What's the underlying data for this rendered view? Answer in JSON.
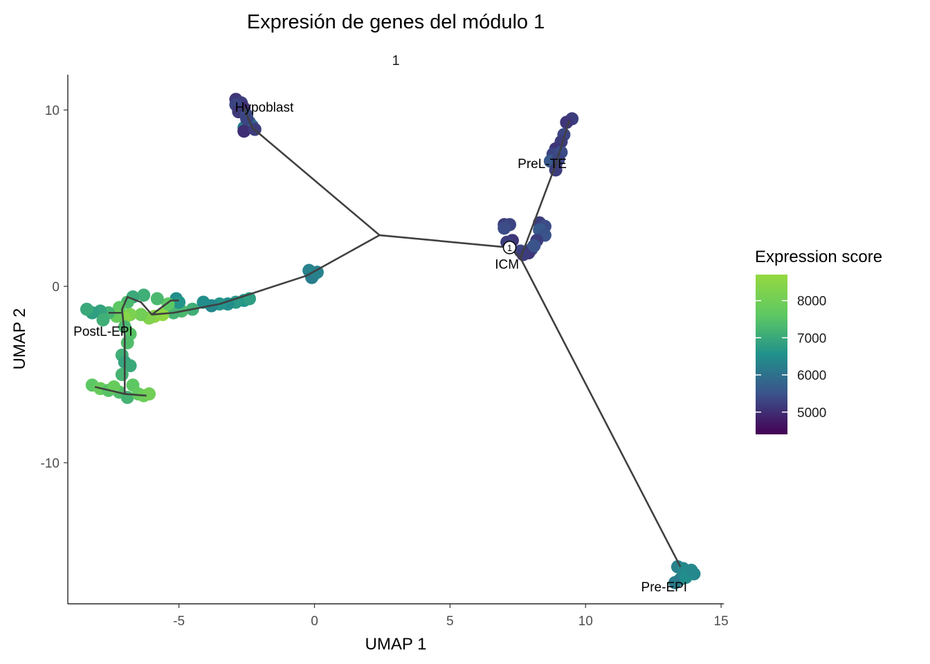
{
  "chart_data": {
    "type": "scatter",
    "title": "Expresión de genes del módulo 1",
    "facet_label": "1",
    "xlabel": "UMAP 1",
    "ylabel": "UMAP 2",
    "xlim": [
      -9.1,
      15.1
    ],
    "ylim": [
      -18.0,
      12.0
    ],
    "xticks": [
      -5,
      0,
      5,
      10,
      15
    ],
    "yticks": [
      -10,
      0,
      10
    ],
    "xtick_labels": [
      "-5",
      "0",
      "5",
      "10",
      "15"
    ],
    "ytick_labels": [
      "-10",
      "0",
      "10"
    ],
    "grid": false,
    "colorbar": {
      "title": "Expression score",
      "min": 4400,
      "max": 8700,
      "ticks": [
        5000,
        6000,
        7000,
        8000
      ],
      "tick_labels": [
        "5000",
        "6000",
        "7000",
        "8000"
      ],
      "colors": [
        "#440154",
        "#3b528b",
        "#21918c",
        "#5ec962",
        "#95d840"
      ],
      "position": "right"
    },
    "clusters": [
      {
        "label": "Hypoblast",
        "label_x": -1.85,
        "label_y": 10.1,
        "points": [
          {
            "x": -2.9,
            "y": 10.6,
            "v": 5100
          },
          {
            "x": -2.7,
            "y": 10.4,
            "v": 5200
          },
          {
            "x": -2.6,
            "y": 10.1,
            "v": 5000
          },
          {
            "x": -2.9,
            "y": 10.3,
            "v": 5300
          },
          {
            "x": -2.8,
            "y": 9.9,
            "v": 5150
          },
          {
            "x": -2.5,
            "y": 9.7,
            "v": 5400
          },
          {
            "x": -2.4,
            "y": 9.3,
            "v": 5600
          },
          {
            "x": -2.6,
            "y": 9.0,
            "v": 6200
          },
          {
            "x": -2.3,
            "y": 9.1,
            "v": 5800
          },
          {
            "x": -2.6,
            "y": 8.8,
            "v": 5000
          },
          {
            "x": -2.2,
            "y": 8.9,
            "v": 5200
          },
          {
            "x": -2.5,
            "y": 9.5,
            "v": 5300
          }
        ]
      },
      {
        "label": "PreL-TE",
        "label_x": 8.4,
        "label_y": 6.9,
        "points": [
          {
            "x": 9.5,
            "y": 9.5,
            "v": 5200
          },
          {
            "x": 9.3,
            "y": 9.3,
            "v": 5100
          },
          {
            "x": 9.2,
            "y": 8.6,
            "v": 5300
          },
          {
            "x": 9.1,
            "y": 8.2,
            "v": 5200
          },
          {
            "x": 8.9,
            "y": 7.8,
            "v": 5100
          },
          {
            "x": 8.8,
            "y": 7.5,
            "v": 5300
          },
          {
            "x": 9.1,
            "y": 7.6,
            "v": 5400
          },
          {
            "x": 8.9,
            "y": 6.9,
            "v": 5200
          },
          {
            "x": 8.7,
            "y": 7.1,
            "v": 5600
          },
          {
            "x": 9.0,
            "y": 7.2,
            "v": 5300
          },
          {
            "x": 8.9,
            "y": 6.6,
            "v": 5200
          }
        ]
      },
      {
        "label": "ICM",
        "label_x": 7.1,
        "label_y": 1.2,
        "points": [
          {
            "x": 7.0,
            "y": 3.5,
            "v": 5200
          },
          {
            "x": 7.2,
            "y": 3.5,
            "v": 5300
          },
          {
            "x": 8.3,
            "y": 3.6,
            "v": 5200
          },
          {
            "x": 8.5,
            "y": 3.4,
            "v": 5400
          },
          {
            "x": 8.3,
            "y": 3.2,
            "v": 5600
          },
          {
            "x": 8.5,
            "y": 2.9,
            "v": 5500
          },
          {
            "x": 8.2,
            "y": 2.6,
            "v": 5200
          },
          {
            "x": 7.3,
            "y": 2.6,
            "v": 5100
          },
          {
            "x": 7.1,
            "y": 2.5,
            "v": 5200
          },
          {
            "x": 7.6,
            "y": 2.0,
            "v": 5300
          },
          {
            "x": 8.0,
            "y": 2.1,
            "v": 5400
          },
          {
            "x": 7.9,
            "y": 1.9,
            "v": 5100
          },
          {
            "x": 7.7,
            "y": 1.8,
            "v": 5200
          },
          {
            "x": 8.1,
            "y": 2.3,
            "v": 5500
          },
          {
            "x": 7.0,
            "y": 3.3,
            "v": 5400
          }
        ]
      },
      {
        "label": "Pre-EPI",
        "label_x": 12.9,
        "label_y": -17.1,
        "points": [
          {
            "x": 13.4,
            "y": -15.9,
            "v": 6300
          },
          {
            "x": 13.6,
            "y": -16.0,
            "v": 6400
          },
          {
            "x": 13.8,
            "y": -16.2,
            "v": 6500
          },
          {
            "x": 14.0,
            "y": -16.3,
            "v": 6400
          },
          {
            "x": 13.5,
            "y": -16.6,
            "v": 6300
          },
          {
            "x": 13.3,
            "y": -16.8,
            "v": 6200
          },
          {
            "x": 13.7,
            "y": -16.5,
            "v": 6500
          },
          {
            "x": 13.9,
            "y": -16.1,
            "v": 6400
          }
        ]
      },
      {
        "label": "",
        "label_x": 0,
        "label_y": 0,
        "points": [
          {
            "x": -0.2,
            "y": 0.9,
            "v": 6300
          },
          {
            "x": 0.0,
            "y": 0.7,
            "v": 6400
          },
          {
            "x": -0.1,
            "y": 0.5,
            "v": 6200
          },
          {
            "x": 0.1,
            "y": 0.8,
            "v": 6300
          }
        ]
      },
      {
        "label": "PostL-EPI",
        "label_x": -7.8,
        "label_y": -2.6,
        "points": [
          {
            "x": -2.6,
            "y": -0.8,
            "v": 6600
          },
          {
            "x": -2.9,
            "y": -0.9,
            "v": 6700
          },
          {
            "x": -3.2,
            "y": -1.0,
            "v": 6500
          },
          {
            "x": -3.5,
            "y": -1.0,
            "v": 6600
          },
          {
            "x": -3.8,
            "y": -1.1,
            "v": 6400
          },
          {
            "x": -2.4,
            "y": -0.7,
            "v": 6800
          },
          {
            "x": -4.1,
            "y": -0.9,
            "v": 6500
          },
          {
            "x": -4.5,
            "y": -1.3,
            "v": 7100
          },
          {
            "x": -4.9,
            "y": -1.4,
            "v": 7300
          },
          {
            "x": -5.2,
            "y": -1.5,
            "v": 7200
          },
          {
            "x": -5.1,
            "y": -0.7,
            "v": 6500
          },
          {
            "x": -5.0,
            "y": -0.9,
            "v": 6600
          },
          {
            "x": -5.6,
            "y": -1.6,
            "v": 8600
          },
          {
            "x": -5.9,
            "y": -1.7,
            "v": 8500
          },
          {
            "x": -6.1,
            "y": -1.8,
            "v": 8300
          },
          {
            "x": -6.4,
            "y": -1.6,
            "v": 8000
          },
          {
            "x": -5.4,
            "y": -1.0,
            "v": 7600
          },
          {
            "x": -5.8,
            "y": -0.7,
            "v": 7300
          },
          {
            "x": -6.3,
            "y": -0.5,
            "v": 7100
          },
          {
            "x": -6.7,
            "y": -0.6,
            "v": 7000
          },
          {
            "x": -6.9,
            "y": -0.9,
            "v": 7300
          },
          {
            "x": -7.2,
            "y": -1.2,
            "v": 7600
          },
          {
            "x": -6.8,
            "y": -1.6,
            "v": 8200
          },
          {
            "x": -7.0,
            "y": -1.8,
            "v": 8400
          },
          {
            "x": -7.3,
            "y": -1.7,
            "v": 7800
          },
          {
            "x": -7.6,
            "y": -1.5,
            "v": 7200
          },
          {
            "x": -7.9,
            "y": -1.4,
            "v": 6900
          },
          {
            "x": -8.2,
            "y": -1.5,
            "v": 6800
          },
          {
            "x": -8.4,
            "y": -1.3,
            "v": 7000
          },
          {
            "x": -7.8,
            "y": -1.9,
            "v": 7100
          },
          {
            "x": -7.0,
            "y": -2.3,
            "v": 7300
          },
          {
            "x": -6.8,
            "y": -2.7,
            "v": 7500
          },
          {
            "x": -6.9,
            "y": -3.2,
            "v": 7400
          },
          {
            "x": -7.1,
            "y": -3.9,
            "v": 7100
          },
          {
            "x": -7.0,
            "y": -4.3,
            "v": 6900
          },
          {
            "x": -6.8,
            "y": -4.5,
            "v": 7000
          },
          {
            "x": -7.1,
            "y": -5.0,
            "v": 7200
          },
          {
            "x": -8.2,
            "y": -5.6,
            "v": 7600
          },
          {
            "x": -7.9,
            "y": -5.8,
            "v": 7800
          },
          {
            "x": -7.6,
            "y": -5.9,
            "v": 7500
          },
          {
            "x": -7.2,
            "y": -6.0,
            "v": 7400
          },
          {
            "x": -6.9,
            "y": -6.3,
            "v": 7200
          },
          {
            "x": -6.7,
            "y": -5.6,
            "v": 7600
          },
          {
            "x": -6.5,
            "y": -6.1,
            "v": 7700
          },
          {
            "x": -6.3,
            "y": -6.2,
            "v": 7900
          },
          {
            "x": -6.1,
            "y": -6.1,
            "v": 8000
          },
          {
            "x": -7.4,
            "y": -5.7,
            "v": 7800
          }
        ]
      }
    ],
    "trajectory": [
      [
        [
          -2.6,
          10.1
        ],
        [
          -2.3,
          9.0
        ],
        [
          2.4,
          2.9
        ]
      ],
      [
        [
          2.4,
          2.9
        ],
        [
          7.2,
          2.2
        ],
        [
          7.6,
          1.6
        ],
        [
          8.9,
          6.9
        ],
        [
          9.4,
          9.4
        ]
      ],
      [
        [
          7.6,
          1.6
        ],
        [
          13.5,
          -15.9
        ]
      ],
      [
        [
          2.4,
          2.9
        ],
        [
          -0.3,
          0.6
        ],
        [
          -3.5,
          -1.0
        ],
        [
          -5.2,
          -1.5
        ],
        [
          -6.0,
          -1.6
        ],
        [
          -6.4,
          -0.9
        ],
        [
          -6.9,
          -0.6
        ],
        [
          -7.1,
          -1.3
        ],
        [
          -7.0,
          -2.8
        ],
        [
          -7.0,
          -4.5
        ],
        [
          -7.0,
          -6.1
        ],
        [
          -6.2,
          -6.2
        ]
      ],
      [
        [
          -6.0,
          -1.6
        ],
        [
          -5.3,
          -0.8
        ],
        [
          -5.0,
          -0.8
        ]
      ],
      [
        [
          -7.1,
          -1.5
        ],
        [
          -7.6,
          -1.5
        ]
      ],
      [
        [
          -7.0,
          -6.1
        ],
        [
          -8.1,
          -5.7
        ]
      ]
    ],
    "branch_points": [
      {
        "label": "1",
        "x": 7.2,
        "y": 2.2
      }
    ]
  }
}
